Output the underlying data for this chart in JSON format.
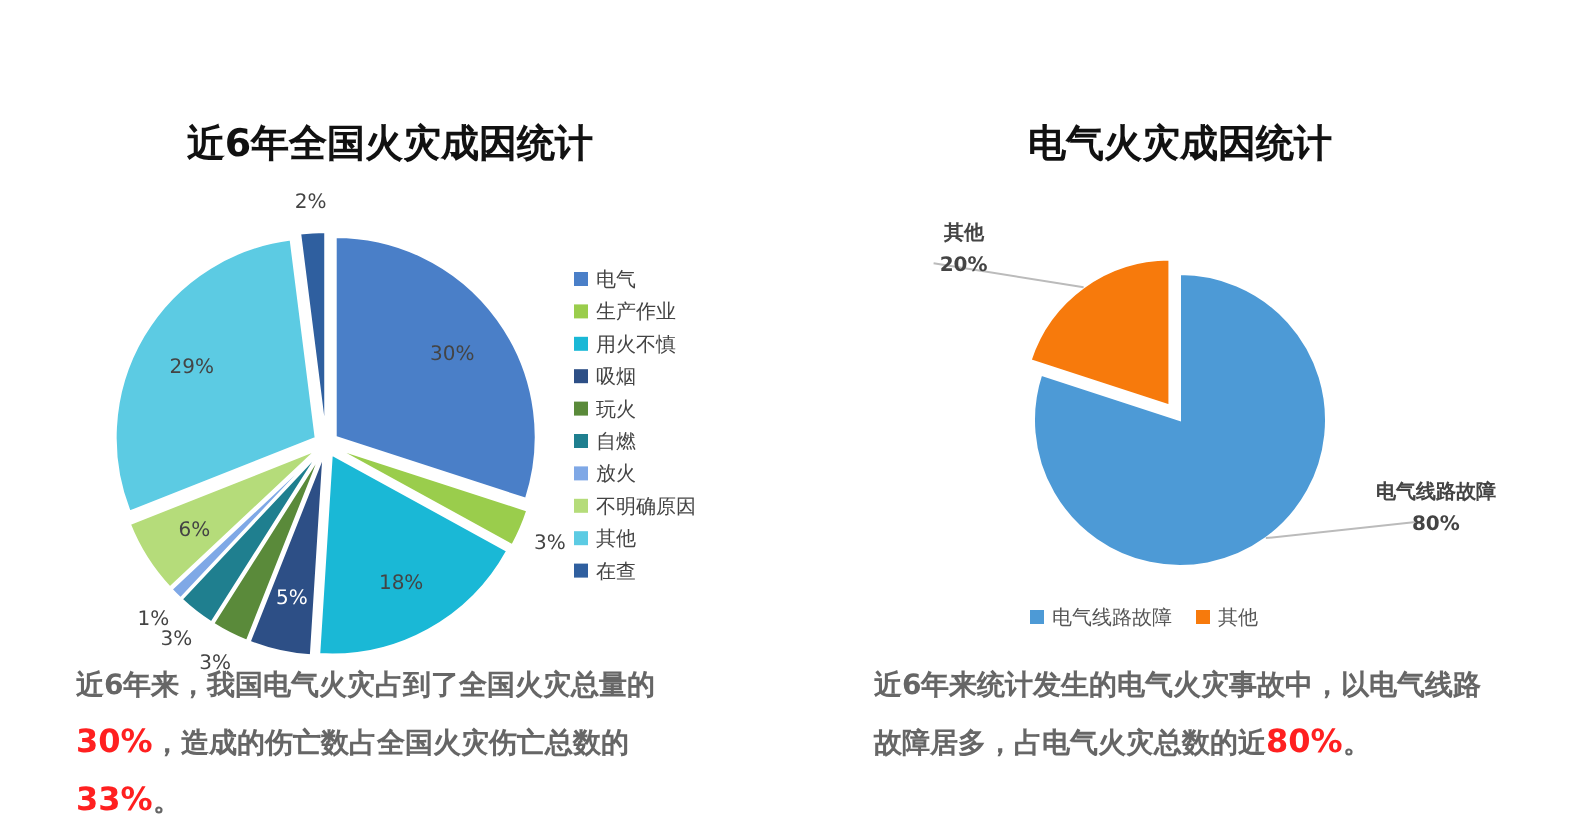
{
  "chart_data": [
    {
      "type": "pie",
      "title": "近6年全国火灾成因统计",
      "categories": [
        "电气",
        "生产作业",
        "用火不慎",
        "吸烟",
        "玩火",
        "自燃",
        "放火",
        "不明确原因",
        "其他",
        "在查"
      ],
      "values": [
        30,
        3,
        18,
        5,
        3,
        3,
        1,
        6,
        29,
        2
      ],
      "colors": [
        "#4a7fc8",
        "#9acd4c",
        "#1ab8d6",
        "#2d4f86",
        "#5a8a3a",
        "#1f7f8f",
        "#7fa8e6",
        "#b5dc7a",
        "#5ccbe3",
        "#2f5f9f"
      ],
      "value_labels": [
        "30%",
        "3%",
        "18%",
        "5%",
        "3%",
        "3%",
        "1%",
        "6%",
        "29%",
        "2%"
      ],
      "legend": "right",
      "annotations": [
        "近6年来，我国电气火灾占到了全国火灾总量的30%，造成的伤亡数占全国火灾伤亡总数的33%。"
      ]
    },
    {
      "type": "pie",
      "title": "电气火灾成因统计",
      "categories": [
        "电气线路故障",
        "其他"
      ],
      "values": [
        80,
        20
      ],
      "colors": [
        "#4d9ad6",
        "#f77a0c"
      ],
      "value_labels": [
        "80%",
        "20%"
      ],
      "legend": "bottom",
      "annotations": [
        "近6年来统计发生的电气火灾事故中，以电气线路故障居多，占电气火灾总数的近80%。"
      ]
    }
  ]
}
